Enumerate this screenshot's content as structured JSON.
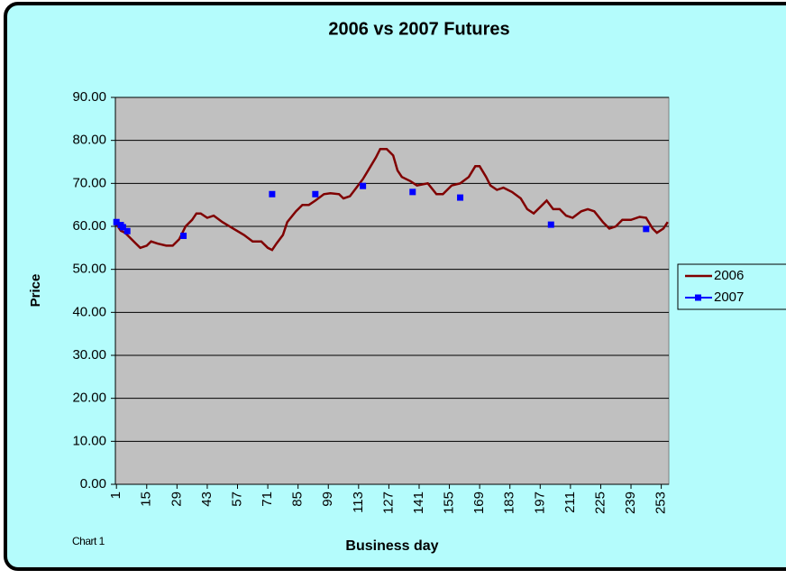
{
  "chart_data": {
    "type": "line",
    "title": "2006 vs 2007 Futures",
    "x_label": "Business day",
    "y_label": "Price",
    "annotation": "Chart 1",
    "xlim": [
      0.5,
      256.5
    ],
    "xticks": [
      1,
      15,
      29,
      43,
      57,
      71,
      85,
      99,
      113,
      127,
      141,
      155,
      169,
      183,
      197,
      211,
      225,
      239,
      253
    ],
    "ylim": [
      0,
      90
    ],
    "yticks": [
      {
        "value": 0,
        "label": "0.00"
      },
      {
        "value": 10,
        "label": "10.00"
      },
      {
        "value": 20,
        "label": "20.00"
      },
      {
        "value": 30,
        "label": "30.00"
      },
      {
        "value": 40,
        "label": "40.00"
      },
      {
        "value": 50,
        "label": "50.00"
      },
      {
        "value": 60,
        "label": "60.00"
      },
      {
        "value": 70,
        "label": "70.00"
      },
      {
        "value": 80,
        "label": "80.00"
      },
      {
        "value": 90,
        "label": "90.00"
      }
    ],
    "grid": true,
    "legend": "right",
    "series": [
      {
        "name": "2006",
        "color": "#800000",
        "style": "line",
        "x": [
          1,
          3,
          5,
          10,
          12,
          15,
          17,
          20,
          24,
          27,
          30,
          33,
          36,
          38,
          40,
          43,
          46,
          50,
          55,
          60,
          64,
          68,
          71,
          73,
          75,
          78,
          80,
          84,
          87,
          90,
          93,
          97,
          100,
          104,
          106,
          109,
          112,
          115,
          118,
          121,
          123,
          126,
          129,
          131,
          133,
          137,
          140,
          145,
          149,
          152,
          156,
          160,
          164,
          167,
          169,
          172,
          174,
          177,
          180,
          184,
          188,
          191,
          194,
          198,
          200,
          203,
          206,
          209,
          212,
          216,
          219,
          222,
          226,
          229,
          232,
          235,
          239,
          243,
          246,
          249,
          251,
          254,
          256
        ],
        "values": [
          60.5,
          59,
          58.5,
          56,
          55,
          55.5,
          56.5,
          56,
          55.5,
          55.5,
          57,
          60,
          61.5,
          63,
          63,
          62,
          62.5,
          61,
          59.5,
          58,
          56.5,
          56.5,
          55,
          54.5,
          56,
          58,
          61,
          63.5,
          65,
          65,
          66,
          67.5,
          67.7,
          67.5,
          66.5,
          67,
          69,
          71,
          73.5,
          76,
          78,
          78,
          76.5,
          73,
          71.5,
          70.5,
          69.5,
          70,
          67.5,
          67.5,
          69.5,
          70,
          71.5,
          74,
          74,
          71.5,
          69.5,
          68.5,
          69,
          68,
          66.5,
          64,
          63,
          65,
          66,
          64,
          64,
          62.5,
          62,
          63.5,
          64,
          63.5,
          61,
          59.5,
          60,
          61.5,
          61.5,
          62.2,
          62,
          59.5,
          58.5,
          59.5,
          61
        ]
      },
      {
        "name": "2007",
        "color": "#0000ff",
        "style": "markers",
        "x": [
          1,
          3,
          4,
          6,
          32,
          73,
          93,
          115,
          138,
          160,
          202,
          246
        ],
        "values": [
          61,
          60.3,
          59.8,
          58.9,
          57.8,
          67.5,
          67.5,
          69.4,
          68,
          66.7,
          60.4,
          59.4
        ]
      }
    ]
  }
}
